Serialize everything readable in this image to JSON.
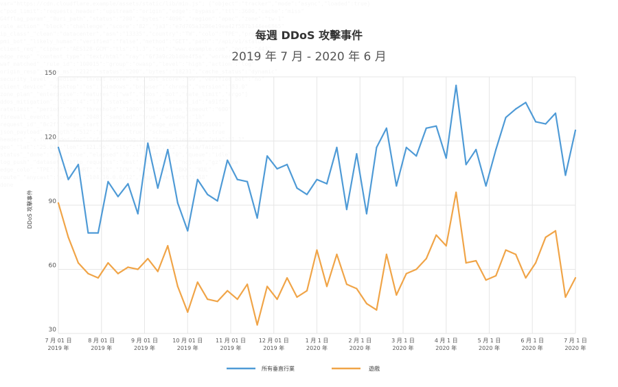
{
  "chart_data": {
    "type": "line",
    "title": "每週 DDoS 攻擊事件",
    "subtitle": "2019 年 7 月 - 2020 年 6 月",
    "ylabel": "DDoS 攻擊事件",
    "ylim": [
      30,
      150
    ],
    "yticks": [
      "150",
      "120",
      "90",
      "60",
      "30"
    ],
    "grid": true,
    "legend_position": "bottom",
    "x_tick_labels": [
      [
        "7 月 01 日",
        "2019 年"
      ],
      [
        "8 月 01 日",
        "2019 年"
      ],
      [
        "9 月 01 日",
        "2019 年"
      ],
      [
        "10 月 01 日",
        "2019 年"
      ],
      [
        "11 月 01 日",
        "2019 年"
      ],
      [
        "12 月 01 日",
        "2019 年"
      ],
      [
        "1 月 1 日",
        "2020 年"
      ],
      [
        "2 月 1 日",
        "2020 年"
      ],
      [
        "3 月 1 日",
        "2020 年"
      ],
      [
        "4 月 1 日",
        "2020 年"
      ],
      [
        "5 月 1 日",
        "2020 年"
      ],
      [
        "6 月 1 日",
        "2020 年"
      ],
      [
        "7 月 1 日",
        "2020 年"
      ]
    ],
    "series": [
      {
        "name": "所有垂直行業",
        "color": "#4e9ad6",
        "values": [
          117,
          102,
          109,
          77,
          77,
          101,
          94,
          100,
          86,
          119,
          98,
          116,
          91,
          78,
          102,
          95,
          92,
          111,
          102,
          101,
          84,
          113,
          107,
          109,
          98,
          95,
          102,
          100,
          117,
          88,
          114,
          86,
          117,
          126,
          99,
          117,
          113,
          126,
          127,
          112,
          146,
          109,
          116,
          99,
          116,
          131,
          135,
          138,
          129,
          128,
          133,
          104,
          125
        ]
      },
      {
        "name": "遊戲",
        "color": "#f0a447",
        "values": [
          91,
          75,
          63,
          58,
          56,
          63,
          58,
          61,
          60,
          65,
          59,
          71,
          52,
          40,
          54,
          46,
          45,
          50,
          46,
          53,
          34,
          52,
          46,
          56,
          47,
          50,
          69,
          52,
          67,
          53,
          51,
          44,
          41,
          67,
          48,
          58,
          60,
          65,
          76,
          71,
          96,
          63,
          64,
          55,
          57,
          69,
          67,
          56,
          63,
          75,
          78,
          47,
          56
        ]
      }
    ]
  }
}
